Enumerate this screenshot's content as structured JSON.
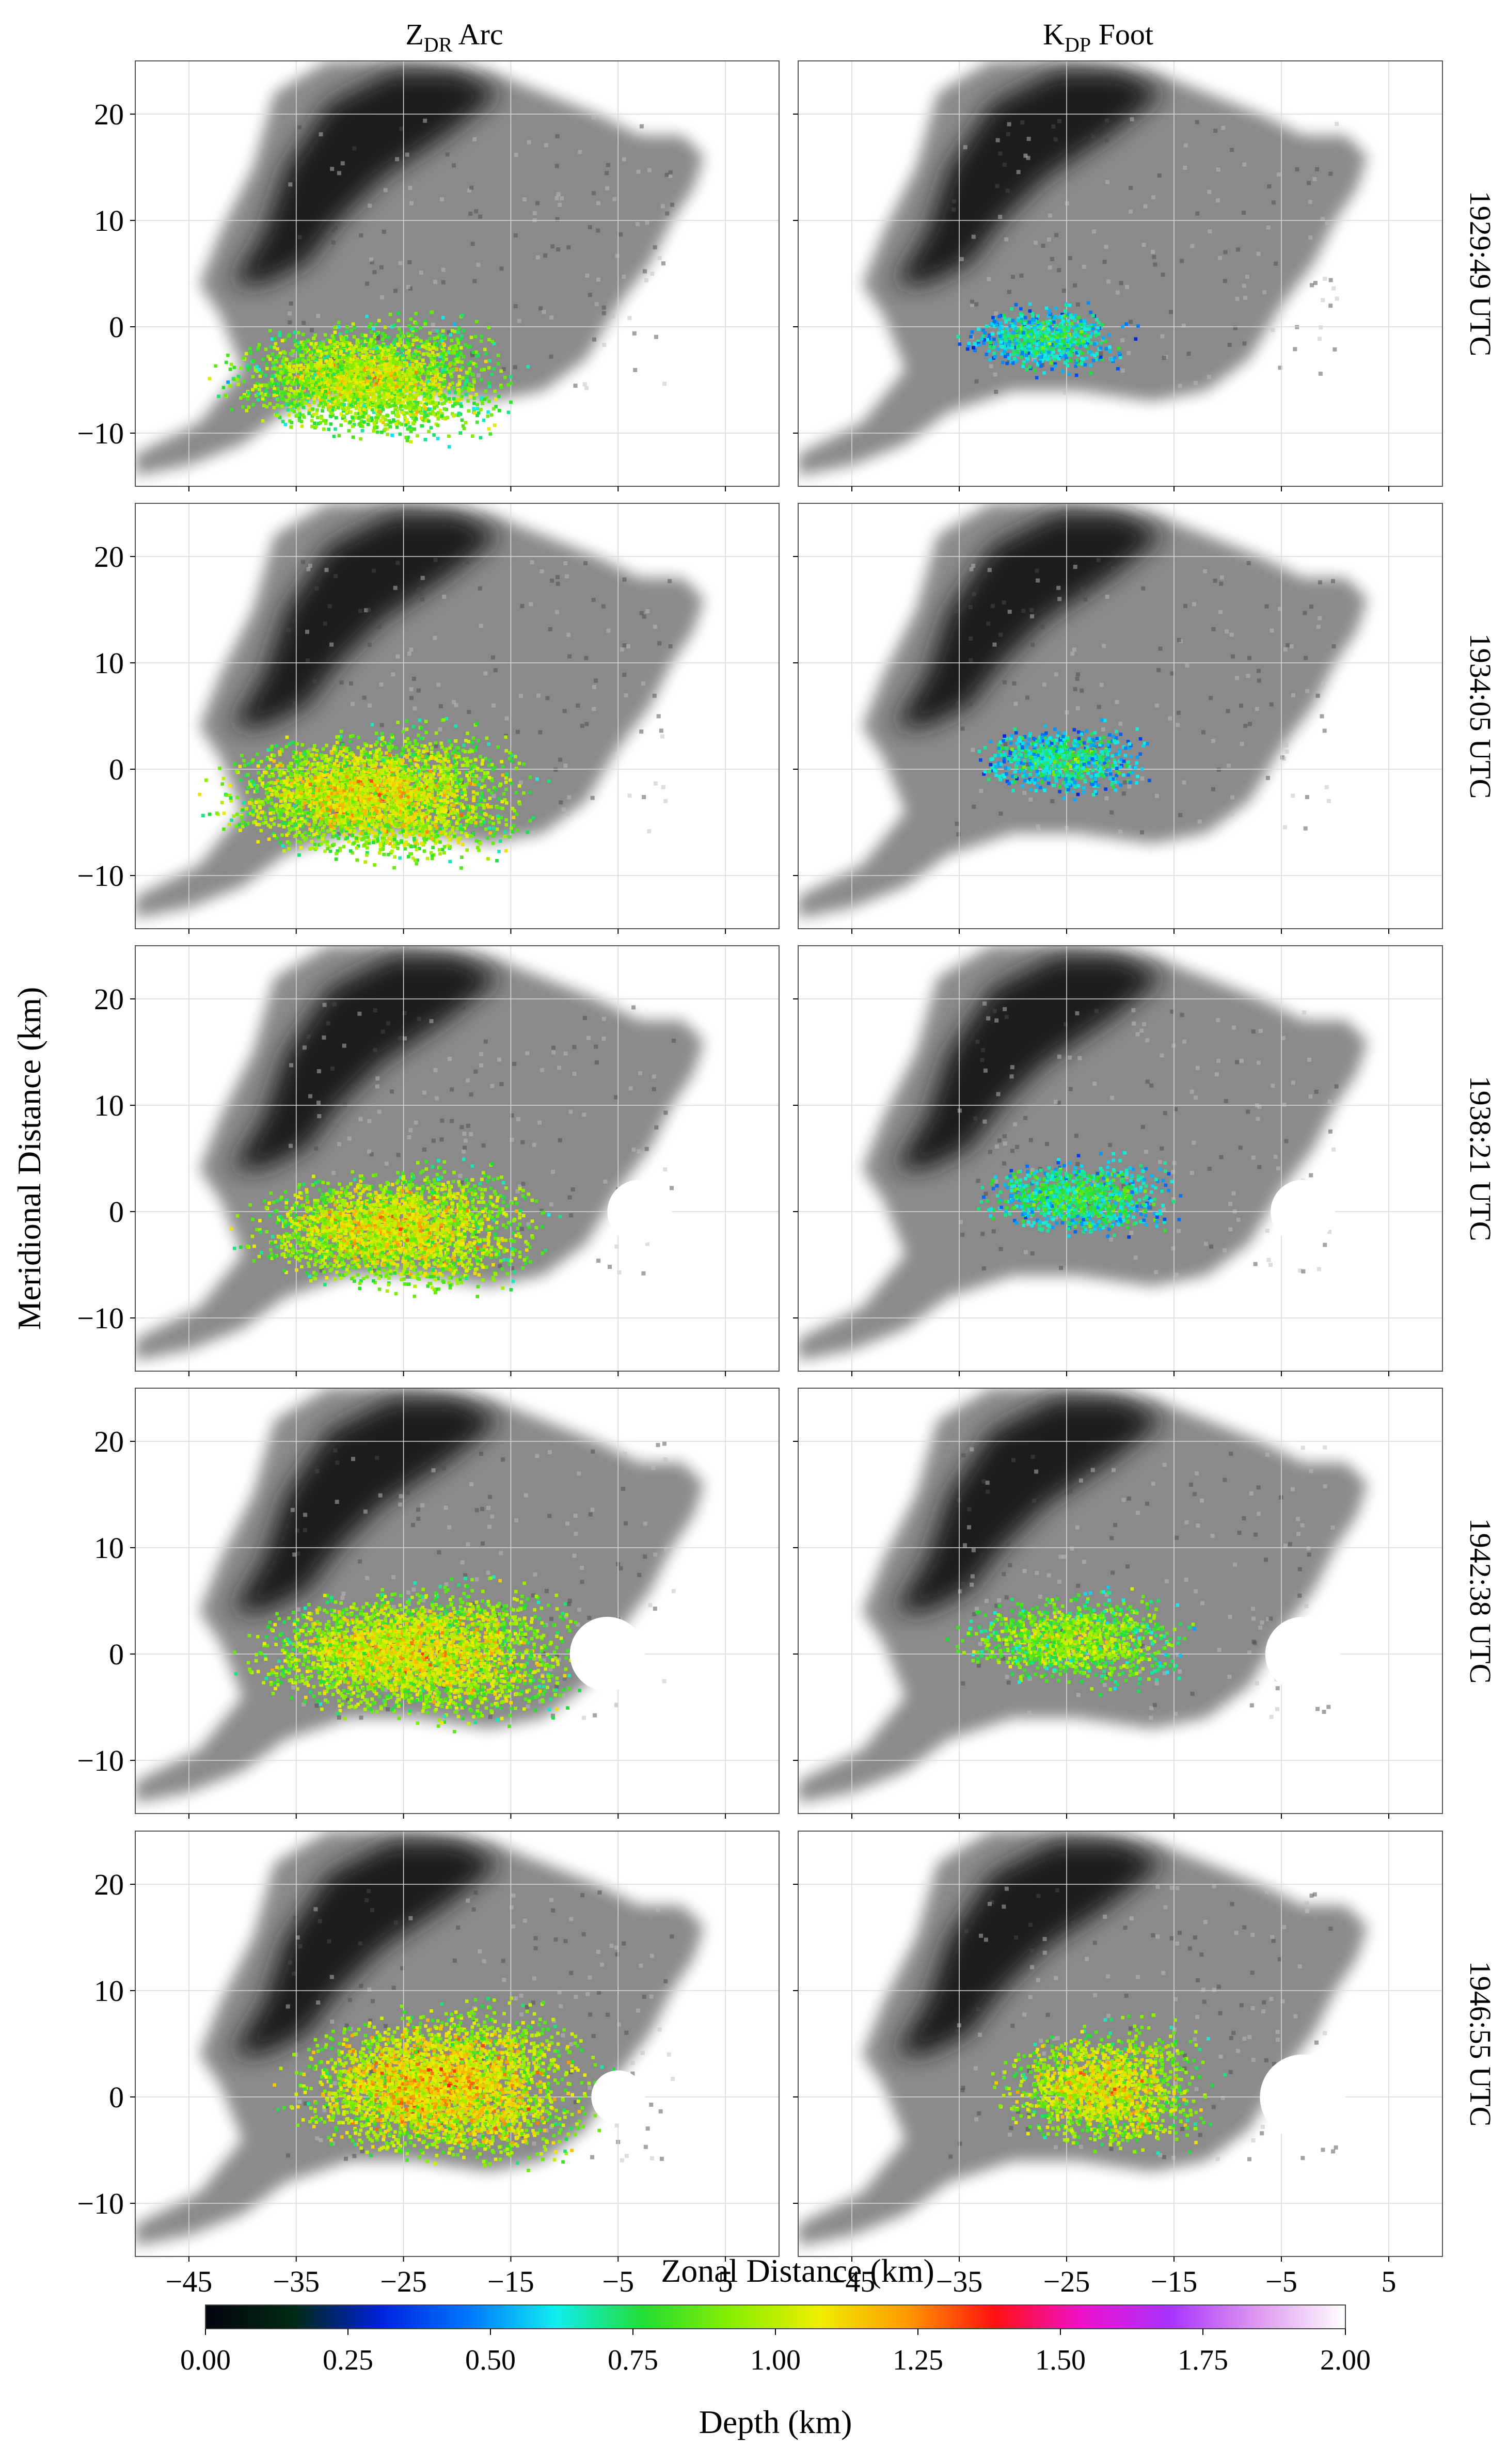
{
  "figure": {
    "column_titles": [
      {
        "main": "Z",
        "sub": "DR",
        "rest": " Arc"
      },
      {
        "main": "K",
        "sub": "DP",
        "rest": " Foot"
      }
    ],
    "row_labels": [
      "1929:49 UTC",
      "1934:05 UTC",
      "1938:21 UTC",
      "1942:38 UTC",
      "1946:55 UTC"
    ],
    "x_axis_label": "Zonal Distance (km)",
    "y_axis_label": "Meridional Distance (km)",
    "colorbar_label": "Depth (km)",
    "colorbar_ticks": [
      "0.00",
      "0.25",
      "0.50",
      "0.75",
      "1.00",
      "1.25",
      "1.50",
      "1.75",
      "2.00"
    ],
    "background_reflectivity_colors": [
      "#1c1c1c",
      "#4a4a4a",
      "#8a8a8a",
      "#bdbdbd"
    ]
  },
  "chart_data": {
    "type": "heatmap",
    "layout": "5 rows x 2 columns of map panels",
    "xlabel": "Zonal Distance (km)",
    "ylabel": "Meridional Distance (km)",
    "xlim": [
      -50,
      10
    ],
    "ylim": [
      -15,
      25
    ],
    "xticks": [
      -45,
      -35,
      -25,
      -15,
      -5,
      5
    ],
    "yticks": [
      -10,
      0,
      10,
      20
    ],
    "grid": true,
    "colorbar": {
      "label": "Depth (km)",
      "range": [
        0.0,
        2.0
      ],
      "ticks": [
        0.0,
        0.25,
        0.5,
        0.75,
        1.0,
        1.25,
        1.5,
        1.75,
        2.0
      ],
      "colormap": [
        "#05050f",
        "#002a12",
        "#0022dd",
        "#0077ff",
        "#11eeee",
        "#22dd33",
        "#88ee00",
        "#eeee00",
        "#ff9900",
        "#ff1111",
        "#ee11cc",
        "#aa33ff",
        "#dd99ee",
        "#ffffff"
      ]
    },
    "columns": [
      "ZDR Arc",
      "KDP Foot"
    ],
    "times": [
      "1929:49 UTC",
      "1934:05 UTC",
      "1938:21 UTC",
      "1942:38 UTC",
      "1946:55 UTC"
    ],
    "panels": [
      {
        "time": "1929:49 UTC",
        "column": "ZDR Arc",
        "region_x": [
          -44,
          -13
        ],
        "region_y": [
          -13,
          3.5
        ],
        "depth_range_km": [
          0.2,
          1.45
        ],
        "typical_depth_km": 0.8,
        "no_data_circle": null
      },
      {
        "time": "1929:49 UTC",
        "column": "KDP Foot",
        "region_x": [
          -36,
          -18
        ],
        "region_y": [
          -6,
          4
        ],
        "depth_range_km": [
          0.2,
          1.3
        ],
        "typical_depth_km": 0.5,
        "no_data_circle": null
      },
      {
        "time": "1934:05 UTC",
        "column": "ZDR Arc",
        "region_x": [
          -45,
          -11
        ],
        "region_y": [
          -11.5,
          7
        ],
        "depth_range_km": [
          0.2,
          1.5
        ],
        "typical_depth_km": 0.85,
        "no_data_circle": null
      },
      {
        "time": "1934:05 UTC",
        "column": "KDP Foot",
        "region_x": [
          -35,
          -16
        ],
        "region_y": [
          -4,
          6
        ],
        "depth_range_km": [
          0.2,
          1.3
        ],
        "typical_depth_km": 0.5,
        "no_data_circle": null
      },
      {
        "time": "1938:21 UTC",
        "column": "ZDR Arc",
        "region_x": [
          -42,
          -10
        ],
        "region_y": [
          -10,
          7
        ],
        "depth_range_km": [
          0.2,
          1.7
        ],
        "typical_depth_km": 0.85,
        "no_data_circle": [
          -3,
          0,
          3
        ]
      },
      {
        "time": "1938:21 UTC",
        "column": "KDP Foot",
        "region_x": [
          -35,
          -13
        ],
        "region_y": [
          -4,
          7
        ],
        "depth_range_km": [
          0.2,
          1.3
        ],
        "typical_depth_km": 0.55,
        "no_data_circle": [
          -3,
          0,
          3
        ]
      },
      {
        "time": "1942:38 UTC",
        "column": "ZDR Arc",
        "region_x": [
          -42,
          -6
        ],
        "region_y": [
          -9,
          9.5
        ],
        "depth_range_km": [
          0.2,
          1.5
        ],
        "typical_depth_km": 0.85,
        "no_data_circle": [
          -6,
          0,
          3.5
        ]
      },
      {
        "time": "1942:38 UTC",
        "column": "KDP Foot",
        "region_x": [
          -37,
          -12
        ],
        "region_y": [
          -5,
          8
        ],
        "depth_range_km": [
          0.2,
          1.45
        ],
        "typical_depth_km": 0.75,
        "no_data_circle": [
          -3,
          0,
          3.5
        ]
      },
      {
        "time": "1946:55 UTC",
        "column": "ZDR Arc",
        "region_x": [
          -38,
          -5
        ],
        "region_y": [
          -9.5,
          12
        ],
        "depth_range_km": [
          0.2,
          1.5
        ],
        "typical_depth_km": 0.9,
        "no_data_circle": [
          -5,
          0,
          2.5
        ]
      },
      {
        "time": "1946:55 UTC",
        "column": "KDP Foot",
        "region_x": [
          -33,
          -10
        ],
        "region_y": [
          -8,
          10
        ],
        "depth_range_km": [
          0.2,
          1.6
        ],
        "typical_depth_km": 0.85,
        "no_data_circle": [
          -3,
          0,
          4
        ]
      }
    ]
  }
}
